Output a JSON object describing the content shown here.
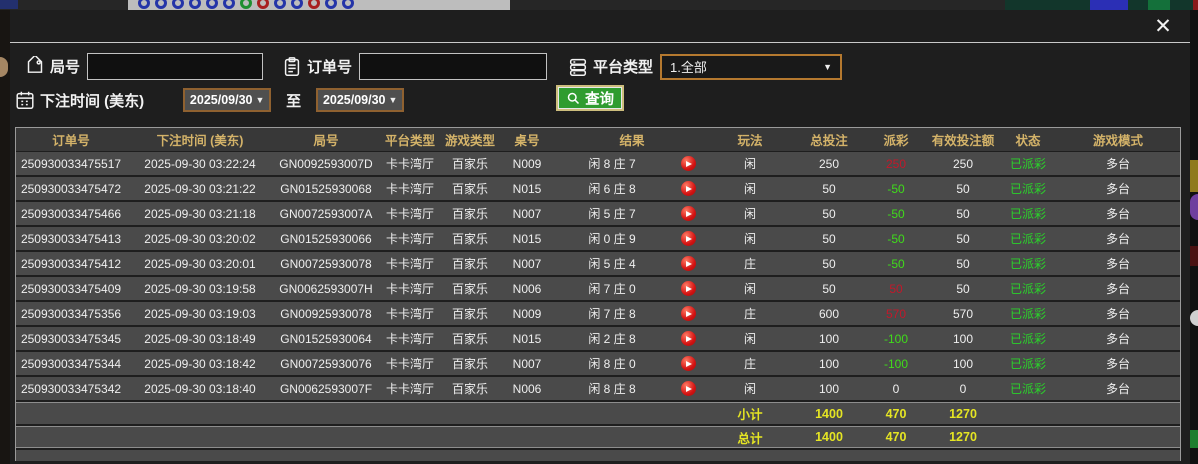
{
  "window": {
    "close_label": "✕"
  },
  "filters": {
    "round_label": "局号",
    "round_value": "",
    "order_label": "订单号",
    "order_value": "",
    "platform_label": "平台类型",
    "platform_value": "1.全部",
    "dropdown_caret": "▼",
    "bet_time_label": "下注时间 (美东)",
    "date_from": "2025/09/30",
    "to_label": "至",
    "date_to": "2025/09/30",
    "search_label": "查询"
  },
  "table": {
    "columns": [
      "订单号",
      "下注时间 (美东)",
      "局号",
      "平台类型",
      "游戏类型",
      "桌号",
      "结果",
      "玩法",
      "总投注",
      "派彩",
      "有效投注额",
      "状态",
      "游戏模式"
    ],
    "rows": [
      {
        "order": "250930033475517",
        "time": "2025-09-30 03:22:24",
        "round": "GN0092593007D",
        "platform": "卡卡湾厅",
        "game": "百家乐",
        "table_no": "N009",
        "result": "闲 8 庄 7",
        "bet": "闲",
        "total": "250",
        "payout": "250",
        "payout_class": "red",
        "valid": "250",
        "status": "已派彩",
        "mode": "多台"
      },
      {
        "order": "250930033475472",
        "time": "2025-09-30 03:21:22",
        "round": "GN01525930068",
        "platform": "卡卡湾厅",
        "game": "百家乐",
        "table_no": "N015",
        "result": "闲 6 庄 8",
        "bet": "闲",
        "total": "50",
        "payout": "-50",
        "payout_class": "green",
        "valid": "50",
        "status": "已派彩",
        "mode": "多台"
      },
      {
        "order": "250930033475466",
        "time": "2025-09-30 03:21:18",
        "round": "GN0072593007A",
        "platform": "卡卡湾厅",
        "game": "百家乐",
        "table_no": "N007",
        "result": "闲 5 庄 7",
        "bet": "闲",
        "total": "50",
        "payout": "-50",
        "payout_class": "green",
        "valid": "50",
        "status": "已派彩",
        "mode": "多台"
      },
      {
        "order": "250930033475413",
        "time": "2025-09-30 03:20:02",
        "round": "GN01525930066",
        "platform": "卡卡湾厅",
        "game": "百家乐",
        "table_no": "N015",
        "result": "闲 0 庄 9",
        "bet": "闲",
        "total": "50",
        "payout": "-50",
        "payout_class": "green",
        "valid": "50",
        "status": "已派彩",
        "mode": "多台"
      },
      {
        "order": "250930033475412",
        "time": "2025-09-30 03:20:01",
        "round": "GN00725930078",
        "platform": "卡卡湾厅",
        "game": "百家乐",
        "table_no": "N007",
        "result": "闲 5 庄 4",
        "bet": "庄",
        "total": "50",
        "payout": "-50",
        "payout_class": "green",
        "valid": "50",
        "status": "已派彩",
        "mode": "多台"
      },
      {
        "order": "250930033475409",
        "time": "2025-09-30 03:19:58",
        "round": "GN0062593007H",
        "platform": "卡卡湾厅",
        "game": "百家乐",
        "table_no": "N006",
        "result": "闲 7 庄 0",
        "bet": "闲",
        "total": "50",
        "payout": "50",
        "payout_class": "red",
        "valid": "50",
        "status": "已派彩",
        "mode": "多台"
      },
      {
        "order": "250930033475356",
        "time": "2025-09-30 03:19:03",
        "round": "GN00925930078",
        "platform": "卡卡湾厅",
        "game": "百家乐",
        "table_no": "N009",
        "result": "闲 7 庄 8",
        "bet": "庄",
        "total": "600",
        "payout": "570",
        "payout_class": "red",
        "valid": "570",
        "status": "已派彩",
        "mode": "多台"
      },
      {
        "order": "250930033475345",
        "time": "2025-09-30 03:18:49",
        "round": "GN01525930064",
        "platform": "卡卡湾厅",
        "game": "百家乐",
        "table_no": "N015",
        "result": "闲 2 庄 8",
        "bet": "闲",
        "total": "100",
        "payout": "-100",
        "payout_class": "green",
        "valid": "100",
        "status": "已派彩",
        "mode": "多台"
      },
      {
        "order": "250930033475344",
        "time": "2025-09-30 03:18:42",
        "round": "GN00725930076",
        "platform": "卡卡湾厅",
        "game": "百家乐",
        "table_no": "N007",
        "result": "闲 8 庄 0",
        "bet": "庄",
        "total": "100",
        "payout": "-100",
        "payout_class": "green",
        "valid": "100",
        "status": "已派彩",
        "mode": "多台"
      },
      {
        "order": "250930033475342",
        "time": "2025-09-30 03:18:40",
        "round": "GN0062593007F",
        "platform": "卡卡湾厅",
        "game": "百家乐",
        "table_no": "N006",
        "result": "闲 8 庄 8",
        "bet": "闲",
        "total": "100",
        "payout": "0",
        "payout_class": "zero",
        "valid": "0",
        "status": "已派彩",
        "mode": "多台"
      }
    ],
    "subtotal": {
      "label": "小计",
      "total": "1400",
      "payout": "470",
      "valid": "1270"
    },
    "grand_total": {
      "label": "总计",
      "total": "1400",
      "payout": "470",
      "valid": "1270"
    }
  },
  "background": {
    "road_beads": [
      "b",
      "b",
      "b",
      "b",
      "b",
      "b",
      "g",
      "r",
      "b",
      "b",
      "r",
      "b",
      "b"
    ]
  },
  "colors": {
    "header_gold": "#d4b369",
    "win_red": "#c3182a",
    "loss_green": "#3fdc1a",
    "status_green": "#2ad42a",
    "total_yellow": "#e5e523",
    "button_green": "#2f9c2f",
    "date_border": "#8f6130",
    "dropdown_border": "#b5792f"
  }
}
